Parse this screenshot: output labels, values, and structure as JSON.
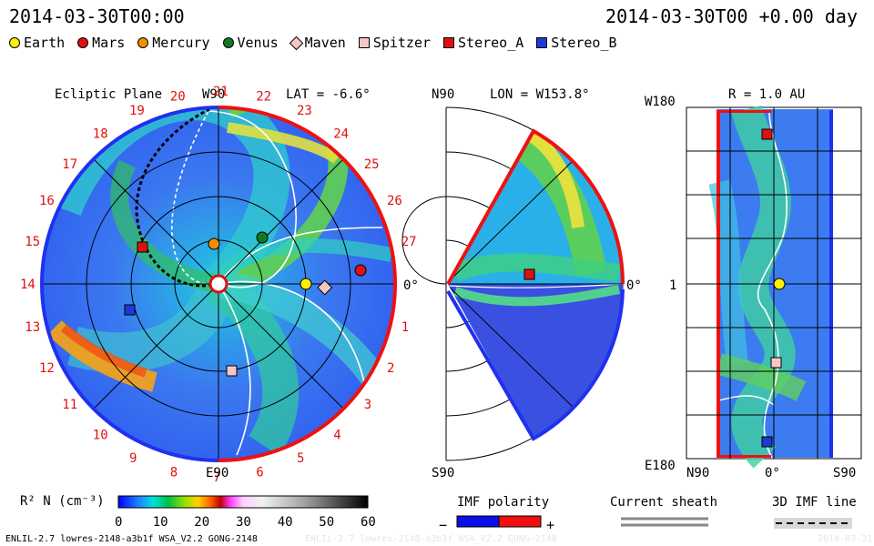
{
  "header": {
    "left_time": "2014-03-30T00:00",
    "right_time": "2014-03-30T00 +0.00 day"
  },
  "legend": [
    {
      "label": "Earth",
      "color": "#ffee00",
      "shape": "circle"
    },
    {
      "label": "Mars",
      "color": "#e01010",
      "shape": "circle"
    },
    {
      "label": "Mercury",
      "color": "#f09000",
      "shape": "circle"
    },
    {
      "label": "Venus",
      "color": "#107a20",
      "shape": "circle"
    },
    {
      "label": "Maven",
      "color": "#f5c6c6",
      "shape": "diamond"
    },
    {
      "label": "Spitzer",
      "color": "#f5c6c6",
      "shape": "square"
    },
    {
      "label": "Stereo_A",
      "color": "#e01010",
      "shape": "square"
    },
    {
      "label": "Stereo_B",
      "color": "#1a3ad8",
      "shape": "square"
    }
  ],
  "ecliptic": {
    "title": "Ecliptic Plane",
    "top_label": "W90",
    "bottom_label": "E90",
    "right_label": "0°",
    "lat": "LAT = -6.6°",
    "rotation_numbers": [
      "1",
      "2",
      "3",
      "4",
      "5",
      "6",
      "7",
      "8",
      "9",
      "10",
      "11",
      "12",
      "13",
      "14",
      "15",
      "16",
      "17",
      "18",
      "19",
      "20",
      "21",
      "22",
      "23",
      "24",
      "25",
      "26",
      "27"
    ]
  },
  "meridional": {
    "top_left": "N90",
    "lon": "LON = W153.8°",
    "bottom_left": "S90",
    "right_label": "0°"
  },
  "shell": {
    "title": "R = 1.0 AU",
    "top_left": "W180",
    "mid_left": "1",
    "bottom_left": "E180",
    "x_labels": [
      "N90",
      "0°",
      "S90"
    ]
  },
  "colorbar": {
    "label": "R² N (cm⁻³)",
    "ticks": [
      "0",
      "10",
      "20",
      "30",
      "40",
      "50",
      "60"
    ]
  },
  "imf": {
    "label": "IMF polarity",
    "minus": "−",
    "plus": "+",
    "neg_color": "#0a10e8",
    "pos_color": "#f01010"
  },
  "current_sheath": {
    "label": "Current sheath"
  },
  "imf_line": {
    "label": "3D IMF line"
  },
  "footer": {
    "left": "ENLIL-2.7 lowres-2148-a3b1f WSA_V2.2 GONG-2148",
    "watermark": "ENLIL-2.7 lowres-2148-a3b1f WSA_V2.2 GONG-2148",
    "right": "2014-03-31"
  }
}
